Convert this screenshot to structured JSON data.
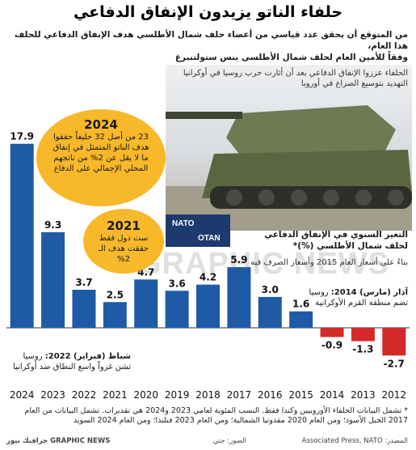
{
  "title": "حلفاء الناتو يزيدون الإنفاق الدفاعي",
  "subtitle_line1": "من المتوقع أن يحقق عدد قياسي من أعضاء حلف شمال الأطلسي هدف الإنفاق الدفاعي للحلف هذا العام،",
  "subtitle_line2": "وفقاً للأمين العام لحلف شمال الأطلسي ينس ستولتنبرغ",
  "photo_caption": "الحلفاء عززوا الإنفاق الدفاعي بعد أن أثارت حرب روسيا في أوكرانيا التهديد بتوسيع الصراع في أوروبا",
  "nato_logo": {
    "en": "NATO",
    "fr": "OTAN"
  },
  "watermark": "GRAPHIC NEWS",
  "callout_2024": {
    "year": "2024",
    "text": "23 من أصل 32 حليفاً حققوا هدف الناتو المتمثل في إنفاق ما لا يقل عن 2% من ناتجهم المحلي الإجمالي على الدفاع"
  },
  "callout_2021": {
    "year": "2021",
    "text": "ست دول فقط حققت هدف الـ 2%"
  },
  "legend_title": "التغير السنوي في الإنفاق الدفاعي لحلف شمال الأطلسي (%)*",
  "legend_note": "بناءً على أسعار العام 2015 وأسعار الصرف فيه",
  "annotation_2014": {
    "head": "آذار (مارس) 2014:",
    "text": "روسيا تضم منطقة القرم الأوكرانية"
  },
  "annotation_2022": {
    "head": "شباط (فبراير) 2022:",
    "text": "روسيا تشن غزواً واسع النطاق ضد أوكرانيا"
  },
  "footnote": "* تشمل البيانات الحلفاء الأوروبيين وكندا فقط. النسب المئوية لعامي 2023 و2024 هي تقديرات. تشمل البيانات من العام 2017 الجبل الأسود؛ ومن العام 2020 مقدونيا الشمالية؛ ومن العام 2023 فنلندا؛ ومن العام 2024 السويد",
  "credits": {
    "source": "المصدر: Associated Press, NATO",
    "image": "الصور: جتي",
    "brand": "GRAPHIC NEWS جرافيك نيوز"
  },
  "colors": {
    "positive": "#1f5aa6",
    "negative": "#d42a2a",
    "callout": "#f7b82a"
  },
  "chart_data": {
    "type": "bar",
    "categories": [
      "2024",
      "2023",
      "2022",
      "2021",
      "2020",
      "2019",
      "2018",
      "2017",
      "2016",
      "2015",
      "2014",
      "2013",
      "2012"
    ],
    "values": [
      17.9,
      9.3,
      3.7,
      2.5,
      4.7,
      3.6,
      4.2,
      5.9,
      3.0,
      1.6,
      -0.9,
      -1.3,
      -2.7
    ],
    "value_labels": [
      "17.9",
      "9.3",
      "3.7",
      "2.5",
      "4.7",
      "3.6",
      "4.2",
      "5.9",
      "3.0",
      "1.6",
      "-0.9",
      "-1.3",
      "-2.7"
    ],
    "ylabel": "التغير السنوي في الإنفاق الدفاعي لحلف شمال الأطلسي (%)*",
    "ylim": [
      -2.7,
      17.9
    ],
    "grid": false,
    "order": "right-to-left years ascending (2024 at left)"
  }
}
